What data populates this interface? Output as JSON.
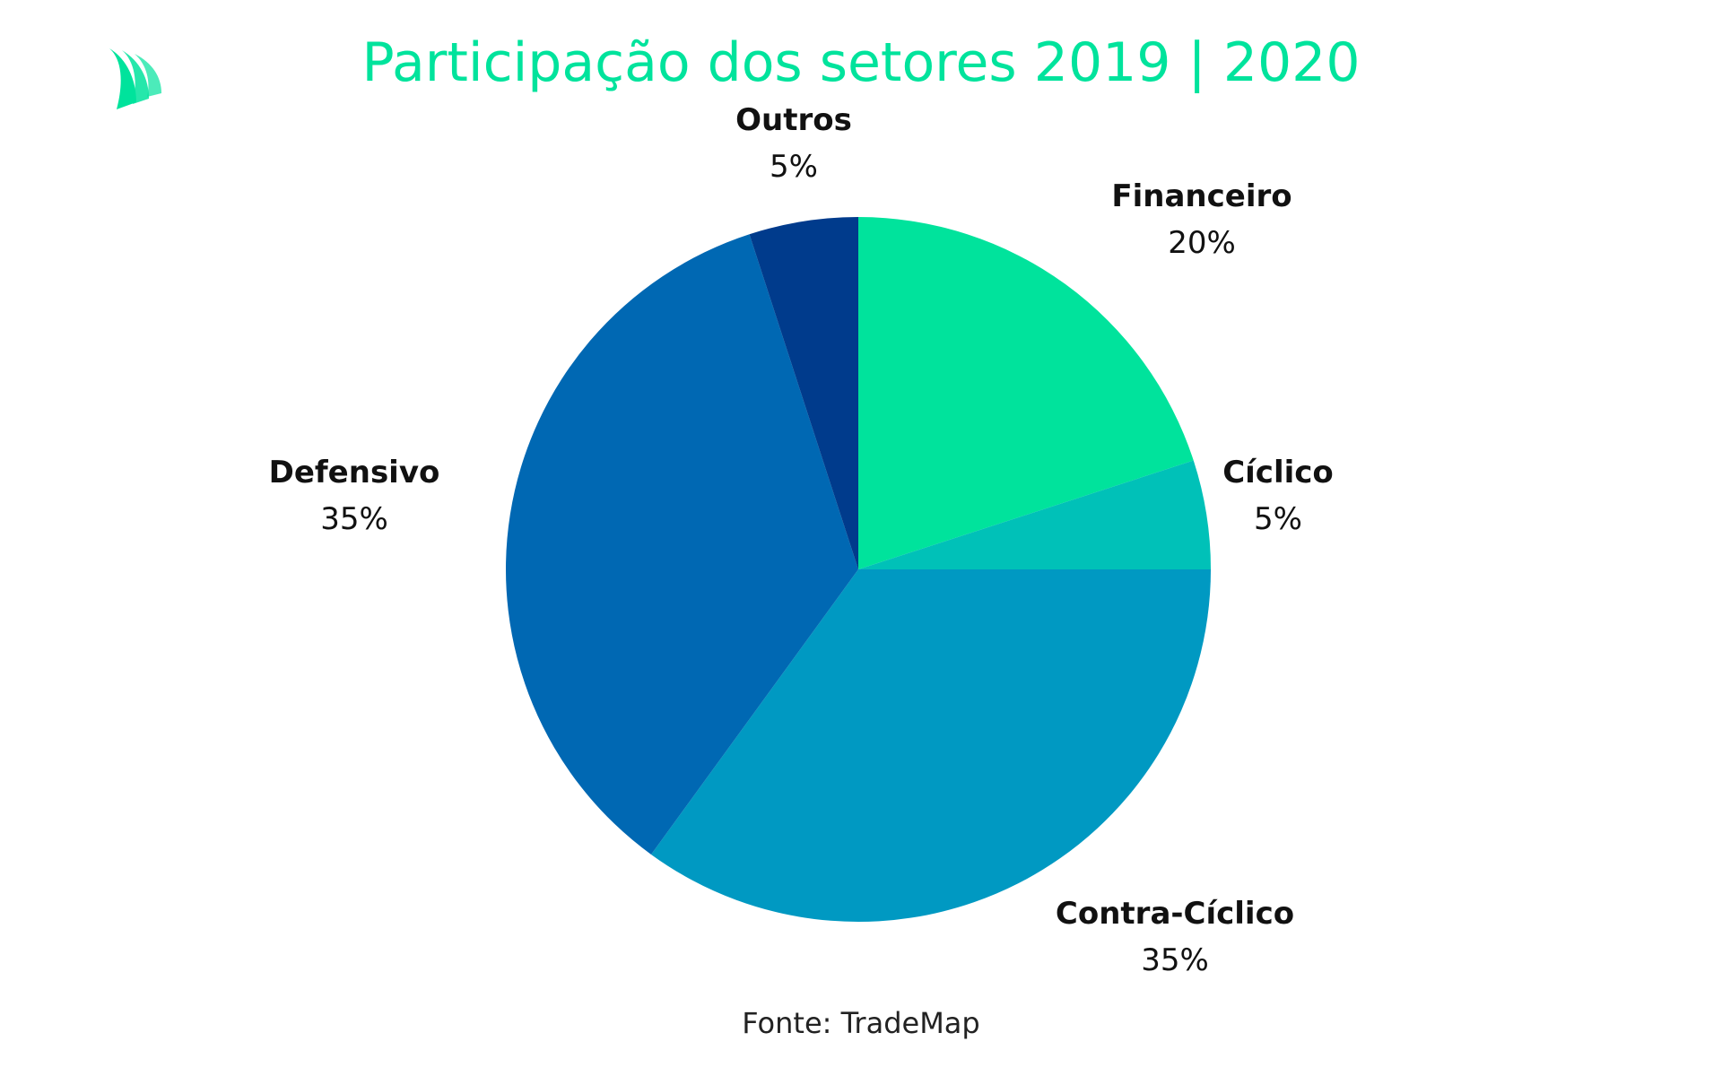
{
  "chart_data": {
    "type": "pie",
    "title": "Participação dos setores 2019 | 2020",
    "slices": [
      {
        "label": "Financeiro",
        "value": 20,
        "value_label": "20%",
        "color": "#00e39c"
      },
      {
        "label": "Cíclico",
        "value": 5,
        "value_label": "5%",
        "color": "#00c1b8"
      },
      {
        "label": "Contra-Cíclico",
        "value": 35,
        "value_label": "35%",
        "color": "#0099c2"
      },
      {
        "label": "Defensivo",
        "value": 35,
        "value_label": "35%",
        "color": "#0068b3"
      },
      {
        "label": "Outros",
        "value": 5,
        "value_label": "5%",
        "color": "#003b8c"
      }
    ],
    "start_angle_deg": 0,
    "direction": "clockwise",
    "legend": "none",
    "source": "Fonte: TradeMap"
  },
  "logo": {
    "icon": "sails-logo-icon",
    "color": "#00e39c"
  }
}
